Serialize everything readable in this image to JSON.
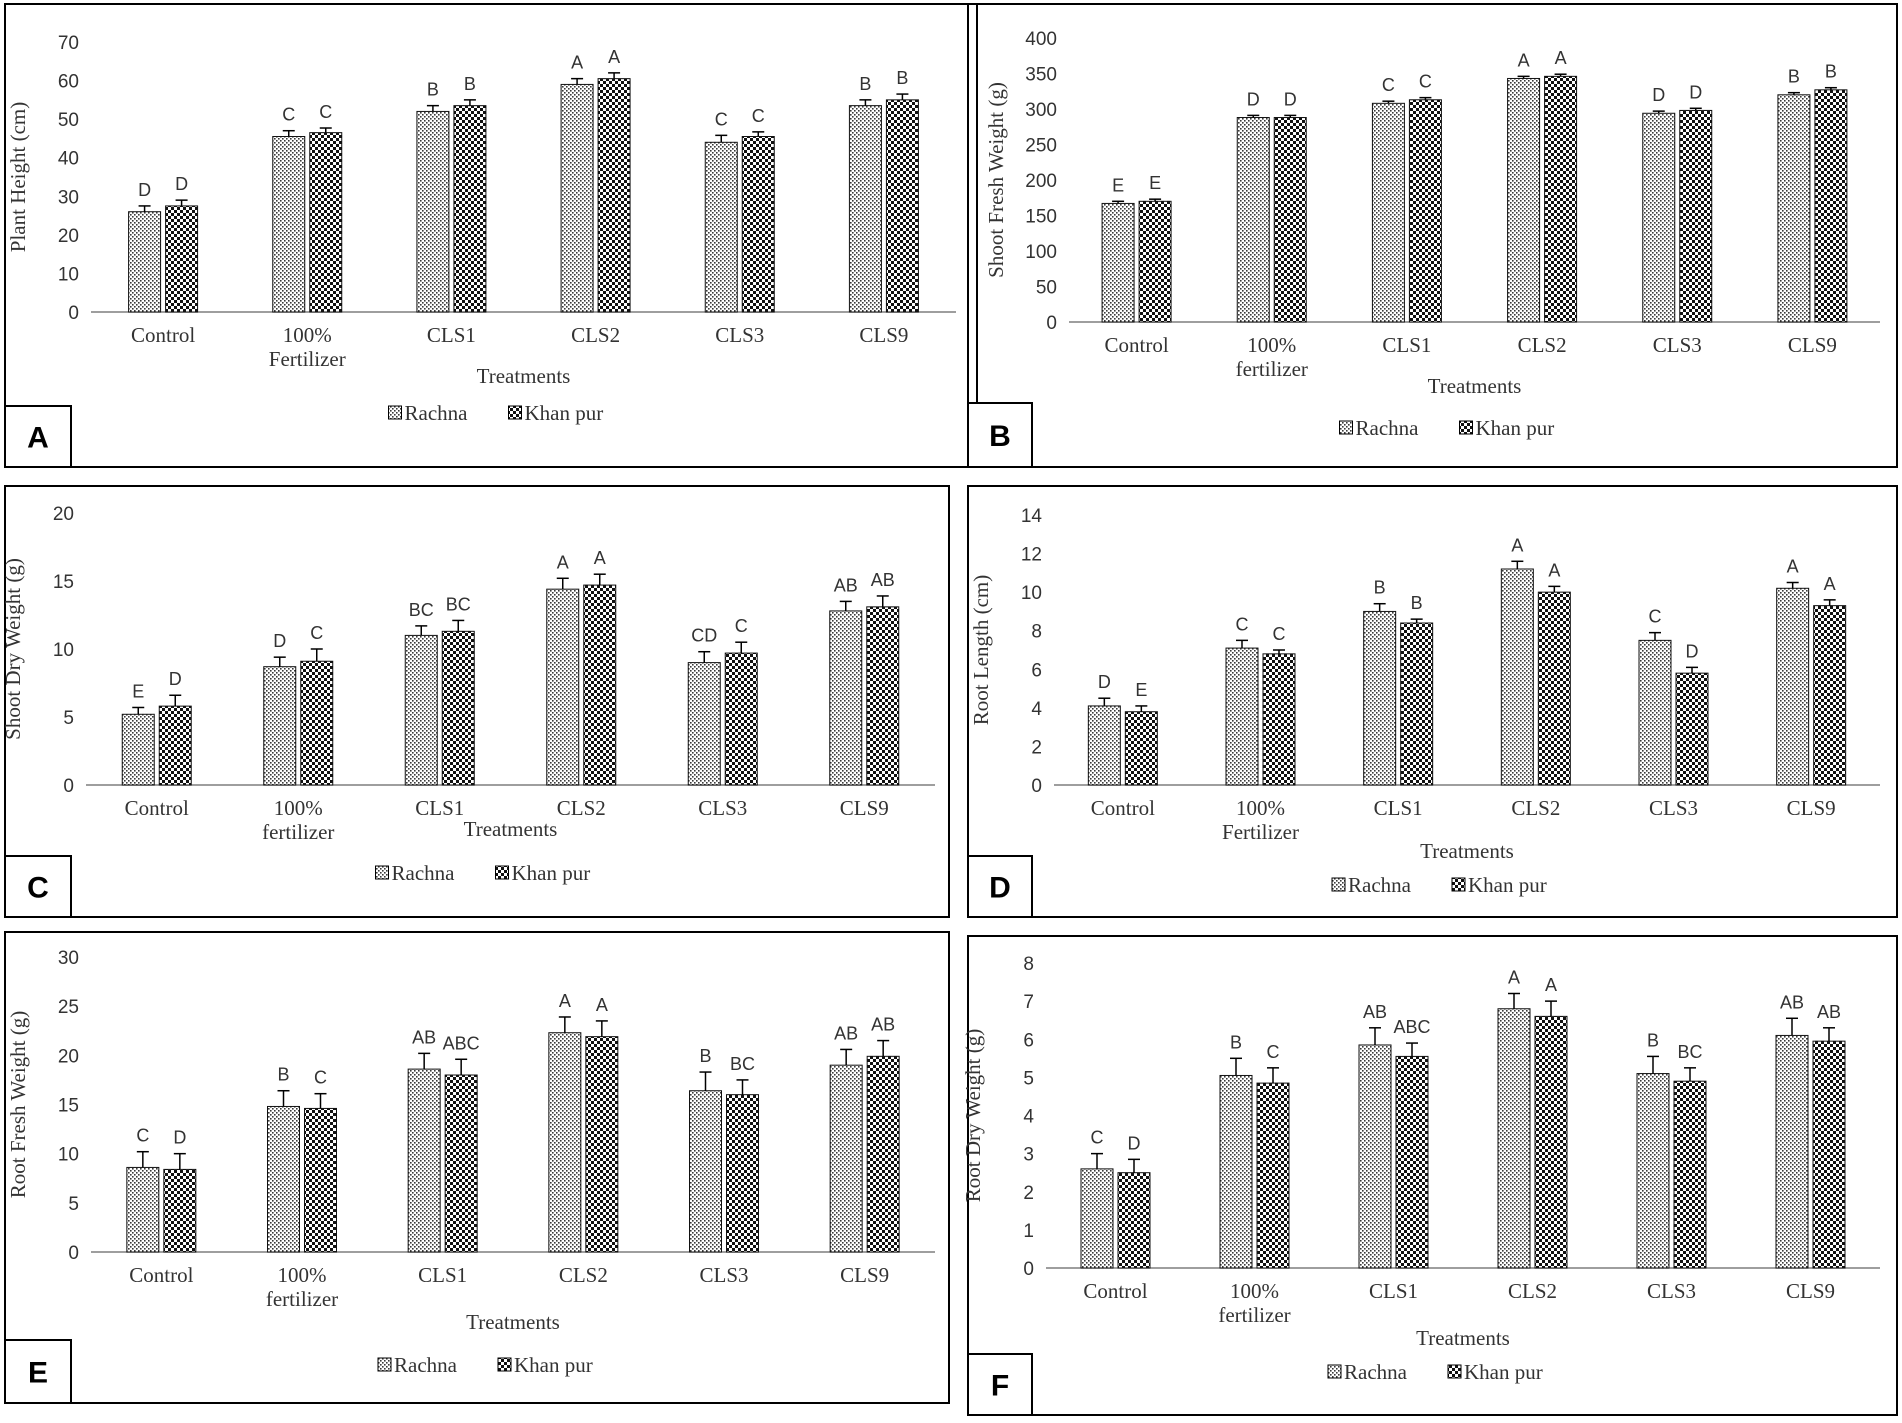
{
  "legend": {
    "series": [
      "Rachna",
      "Khan pur"
    ]
  },
  "colors": {
    "border": "#000000",
    "axis": "#7f7f7f",
    "bar_stroke": "#111111"
  },
  "chart_data": [
    {
      "panel_letter": "A",
      "type": "bar",
      "categories": [
        [
          "Control"
        ],
        [
          "100%",
          "Fertilizer"
        ],
        [
          "CLS1"
        ],
        [
          "CLS2"
        ],
        [
          "CLS3"
        ],
        [
          "CLS9"
        ]
      ],
      "xlabel": "Treatments",
      "ylabel": "Plant Height (cm)",
      "ylim": [
        0,
        70
      ],
      "yticks": [
        0,
        10,
        20,
        30,
        40,
        50,
        60,
        70
      ],
      "series": [
        {
          "name": "Rachna",
          "values": [
            26,
            45.5,
            52,
            59,
            44,
            53.5
          ],
          "errors": [
            1.5,
            1.5,
            1.5,
            1.5,
            1.8,
            1.5
          ],
          "letters": [
            "D",
            "C",
            "B",
            "A",
            "C",
            "B"
          ]
        },
        {
          "name": "Khan pur",
          "values": [
            27.5,
            46.5,
            53.5,
            60.5,
            45.5,
            55
          ],
          "errors": [
            1.5,
            1.2,
            1.5,
            1.5,
            1.2,
            1.5
          ],
          "letters": [
            "D",
            "C",
            "B",
            "A",
            "C",
            "B"
          ]
        }
      ]
    },
    {
      "panel_letter": "B",
      "type": "bar",
      "categories": [
        [
          "Control"
        ],
        [
          "100%",
          "fertilizer"
        ],
        [
          "CLS1"
        ],
        [
          "CLS2"
        ],
        [
          "CLS3"
        ],
        [
          "CLS9"
        ]
      ],
      "xlabel": "Treatments",
      "ylabel": "Shoot Fresh Weight (g)",
      "ylim": [
        0,
        400
      ],
      "yticks": [
        0,
        50,
        100,
        150,
        200,
        250,
        300,
        350,
        400
      ],
      "series": [
        {
          "name": "Rachna",
          "values": [
            167,
            288,
            308,
            343,
            294,
            320
          ],
          "errors": [
            3,
            3,
            3,
            3,
            3,
            3
          ],
          "letters": [
            "E",
            "D",
            "C",
            "A",
            "D",
            "B"
          ]
        },
        {
          "name": "Khan pur",
          "values": [
            170,
            288,
            313,
            346,
            298,
            327
          ],
          "errors": [
            3,
            3,
            3,
            3,
            3,
            3
          ],
          "letters": [
            "E",
            "D",
            "C",
            "A",
            "D",
            "B"
          ]
        }
      ]
    },
    {
      "panel_letter": "C",
      "type": "bar",
      "categories": [
        [
          "Control"
        ],
        [
          "100%",
          "fertilizer"
        ],
        [
          "CLS1"
        ],
        [
          "CLS2"
        ],
        [
          "CLS3"
        ],
        [
          "CLS9"
        ]
      ],
      "xlabel": "Treatments",
      "ylabel": "Shoot Dry Weight (g)",
      "ylim": [
        0,
        20
      ],
      "yticks": [
        0,
        5,
        10,
        15,
        20
      ],
      "series": [
        {
          "name": "Rachna",
          "values": [
            5.2,
            8.7,
            11,
            14.4,
            9,
            12.8
          ],
          "errors": [
            0.5,
            0.7,
            0.7,
            0.8,
            0.8,
            0.7
          ],
          "letters": [
            "E",
            "D",
            "BC",
            "A",
            "CD",
            "AB"
          ]
        },
        {
          "name": "Khan pur",
          "values": [
            5.8,
            9.1,
            11.3,
            14.7,
            9.7,
            13.1
          ],
          "errors": [
            0.8,
            0.9,
            0.8,
            0.8,
            0.8,
            0.8
          ],
          "letters": [
            "D",
            "C",
            "BC",
            "A",
            "C",
            "AB"
          ]
        }
      ]
    },
    {
      "panel_letter": "D",
      "type": "bar",
      "categories": [
        [
          "Control"
        ],
        [
          "100%",
          "Fertilizer"
        ],
        [
          "CLS1"
        ],
        [
          "CLS2"
        ],
        [
          "CLS3"
        ],
        [
          "CLS9"
        ]
      ],
      "xlabel": "Treatments",
      "ylabel": "Root Length (cm)",
      "ylim": [
        0,
        14
      ],
      "yticks": [
        0,
        2,
        4,
        6,
        8,
        10,
        12,
        14
      ],
      "series": [
        {
          "name": "Rachna",
          "values": [
            4.1,
            7.1,
            9,
            11.2,
            7.5,
            10.2
          ],
          "errors": [
            0.4,
            0.4,
            0.4,
            0.4,
            0.4,
            0.3
          ],
          "letters": [
            "D",
            "C",
            "B",
            "A",
            "C",
            "A"
          ]
        },
        {
          "name": "Khan pur",
          "values": [
            3.8,
            6.8,
            8.4,
            10,
            5.8,
            9.3
          ],
          "errors": [
            0.3,
            0.2,
            0.2,
            0.3,
            0.3,
            0.3
          ],
          "letters": [
            "E",
            "C",
            "B",
            "A",
            "D",
            "A"
          ]
        }
      ]
    },
    {
      "panel_letter": "E",
      "type": "bar",
      "categories": [
        [
          "Control"
        ],
        [
          "100%",
          "fertilizer"
        ],
        [
          "CLS1"
        ],
        [
          "CLS2"
        ],
        [
          "CLS3"
        ],
        [
          "CLS9"
        ]
      ],
      "xlabel": "Treatments",
      "ylabel": "Root Fresh Weight (g)",
      "ylim": [
        0,
        30
      ],
      "yticks": [
        0,
        5,
        10,
        15,
        20,
        25,
        30
      ],
      "series": [
        {
          "name": "Rachna",
          "values": [
            8.6,
            14.8,
            18.6,
            22.3,
            16.4,
            19
          ],
          "errors": [
            1.6,
            1.6,
            1.6,
            1.6,
            1.9,
            1.6
          ],
          "letters": [
            "C",
            "B",
            "AB",
            "A",
            "B",
            "AB"
          ]
        },
        {
          "name": "Khan pur",
          "values": [
            8.4,
            14.6,
            18,
            21.9,
            16,
            19.9
          ],
          "errors": [
            1.6,
            1.5,
            1.6,
            1.6,
            1.5,
            1.6
          ],
          "letters": [
            "D",
            "C",
            "ABC",
            "A",
            "BC",
            "AB"
          ]
        }
      ]
    },
    {
      "panel_letter": "F",
      "type": "bar",
      "categories": [
        [
          "Control"
        ],
        [
          "100%",
          "fertilizer"
        ],
        [
          "CLS1"
        ],
        [
          "CLS2"
        ],
        [
          "CLS3"
        ],
        [
          "CLS9"
        ]
      ],
      "xlabel": "Treatments",
      "ylabel": "Root Dry Weight (g)",
      "ylim": [
        0,
        8
      ],
      "yticks": [
        0,
        1,
        2,
        3,
        4,
        5,
        6,
        7,
        8
      ],
      "series": [
        {
          "name": "Rachna",
          "values": [
            2.6,
            5.05,
            5.85,
            6.8,
            5.1,
            6.1
          ],
          "errors": [
            0.4,
            0.45,
            0.45,
            0.4,
            0.45,
            0.45
          ],
          "letters": [
            "C",
            "B",
            "AB",
            "A",
            "B",
            "AB"
          ]
        },
        {
          "name": "Khan pur",
          "values": [
            2.5,
            4.85,
            5.55,
            6.6,
            4.9,
            5.95
          ],
          "errors": [
            0.35,
            0.4,
            0.35,
            0.4,
            0.35,
            0.35
          ],
          "letters": [
            "D",
            "C",
            "ABC",
            "A",
            "BC",
            "AB"
          ]
        }
      ]
    }
  ]
}
